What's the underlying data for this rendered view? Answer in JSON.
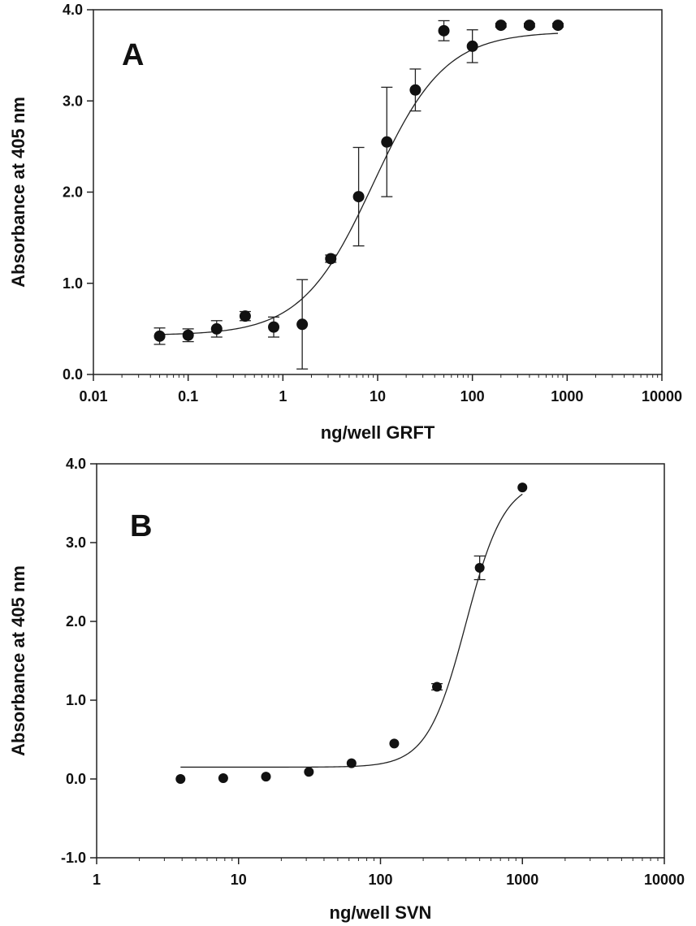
{
  "chart_data": [
    {
      "type": "scatter",
      "panel_label": "A",
      "xlabel": "ng/well GRFT",
      "ylabel": "Absorbance at 405 nm",
      "x_scale": "log",
      "xlim": [
        0.01,
        10000
      ],
      "ylim": [
        0,
        4.0
      ],
      "x_ticks": [
        "0.01",
        "0.1",
        "1",
        "10",
        "100",
        "1000",
        "10000"
      ],
      "y_ticks": [
        "0.0",
        "1.0",
        "2.0",
        "3.0",
        "4.0"
      ],
      "grid": false,
      "series": [
        {
          "points": [
            {
              "x": 0.05,
              "y": 0.42,
              "err": 0.09
            },
            {
              "x": 0.1,
              "y": 0.43,
              "err": 0.07
            },
            {
              "x": 0.2,
              "y": 0.5,
              "err": 0.09
            },
            {
              "x": 0.4,
              "y": 0.64,
              "err": 0.05
            },
            {
              "x": 0.8,
              "y": 0.52,
              "err": 0.11
            },
            {
              "x": 1.6,
              "y": 0.55,
              "err": 0.49
            },
            {
              "x": 3.2,
              "y": 1.27,
              "err": 0.04
            },
            {
              "x": 6.3,
              "y": 1.95,
              "err": 0.54
            },
            {
              "x": 12.5,
              "y": 2.55,
              "err": 0.6
            },
            {
              "x": 25,
              "y": 3.12,
              "err": 0.23
            },
            {
              "x": 50,
              "y": 3.77,
              "err": 0.11
            },
            {
              "x": 100,
              "y": 3.6,
              "err": 0.18
            },
            {
              "x": 200,
              "y": 3.83,
              "err": 0.02
            },
            {
              "x": 400,
              "y": 3.83,
              "err": 0.02
            },
            {
              "x": 800,
              "y": 3.83,
              "err": 0.02
            }
          ],
          "fit": {
            "model": "sigmoid",
            "bottom": 0.43,
            "top": 3.76,
            "ec50": 9.0,
            "hill": 1.15,
            "x_range": [
              0.05,
              800
            ]
          }
        }
      ]
    },
    {
      "type": "scatter",
      "panel_label": "B",
      "xlabel": "ng/well SVN",
      "ylabel": "Absorbance at 405 nm",
      "x_scale": "log",
      "xlim": [
        1,
        10000
      ],
      "ylim": [
        -1.0,
        4.0
      ],
      "x_ticks": [
        "1",
        "10",
        "100",
        "1000",
        "10000"
      ],
      "y_ticks": [
        "-1.0",
        "0.0",
        "1.0",
        "2.0",
        "3.0",
        "4.0"
      ],
      "grid": false,
      "series": [
        {
          "points": [
            {
              "x": 3.9,
              "y": 0.0,
              "err": 0.0
            },
            {
              "x": 7.8,
              "y": 0.01,
              "err": 0.0
            },
            {
              "x": 15.6,
              "y": 0.03,
              "err": 0.0
            },
            {
              "x": 31.3,
              "y": 0.09,
              "err": 0.0
            },
            {
              "x": 62.5,
              "y": 0.2,
              "err": 0.0
            },
            {
              "x": 125,
              "y": 0.45,
              "err": 0.0
            },
            {
              "x": 250,
              "y": 1.17,
              "err": 0.04
            },
            {
              "x": 500,
              "y": 2.68,
              "err": 0.15
            },
            {
              "x": 1000,
              "y": 3.7,
              "err": 0.0
            }
          ],
          "fit": {
            "model": "sigmoid",
            "bottom": 0.15,
            "top": 3.8,
            "ec50": 400,
            "hill": 3.2,
            "x_range": [
              3.9,
              1000
            ]
          }
        }
      ]
    }
  ]
}
